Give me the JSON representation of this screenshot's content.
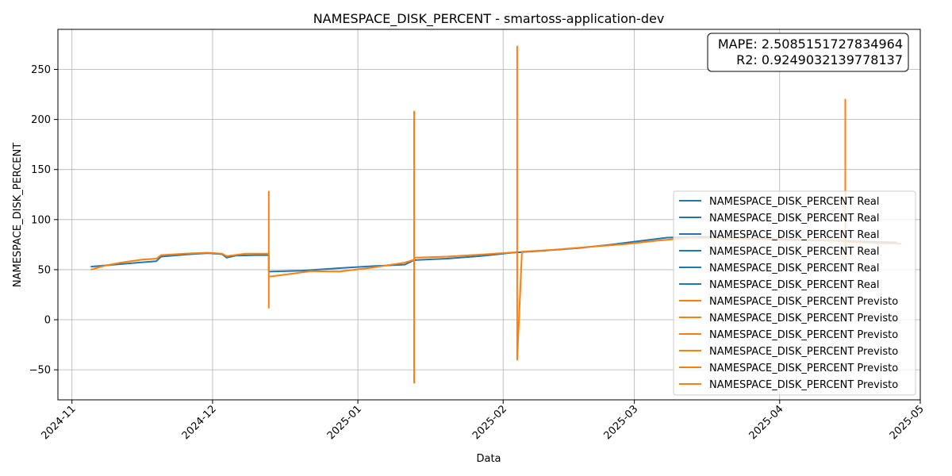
{
  "chart_data": {
    "type": "line",
    "title": "NAMESPACE_DISK_PERCENT - smartoss-application-dev",
    "xlabel": "Data",
    "ylabel": "NAMESPACE_DISK_PERCENT",
    "xlim": [
      "2024-10-29",
      "2025-05-01"
    ],
    "ylim": [
      -80,
      290
    ],
    "grid": true,
    "legend_position": "lower-right",
    "x_ticks": [
      "2024-11",
      "2024-12",
      "2025-01",
      "2025-02",
      "2025-03",
      "2025-04",
      "2025-05"
    ],
    "y_ticks": [
      -50,
      0,
      50,
      100,
      150,
      200,
      250
    ],
    "colors": {
      "real": "#1f77b4",
      "previsto": "#ff7f0e"
    },
    "annotation": {
      "mape": "MAPE: 2.5085151727834964",
      "r2": "R2: 0.9249032139778137"
    },
    "legend": [
      "NAMESPACE_DISK_PERCENT Real",
      "NAMESPACE_DISK_PERCENT Real",
      "NAMESPACE_DISK_PERCENT Real",
      "NAMESPACE_DISK_PERCENT Real",
      "NAMESPACE_DISK_PERCENT Real",
      "NAMESPACE_DISK_PERCENT Real",
      "NAMESPACE_DISK_PERCENT Previsto",
      "NAMESPACE_DISK_PERCENT Previsto",
      "NAMESPACE_DISK_PERCENT Previsto",
      "NAMESPACE_DISK_PERCENT Previsto",
      "NAMESPACE_DISK_PERCENT Previsto",
      "NAMESPACE_DISK_PERCENT Previsto"
    ],
    "series": [
      {
        "name": "NAMESPACE_DISK_PERCENT Real",
        "kind": "real",
        "points": [
          [
            "2024-11-05",
            53
          ],
          [
            "2024-11-10",
            55
          ],
          [
            "2024-11-15",
            57
          ],
          [
            "2024-11-19",
            58.5
          ],
          [
            "2024-11-20",
            63
          ],
          [
            "2024-11-25",
            65
          ],
          [
            "2024-11-30",
            66.5
          ],
          [
            "2024-12-03",
            65.5
          ],
          [
            "2024-12-04",
            62
          ],
          [
            "2024-12-06",
            64
          ],
          [
            "2024-12-10",
            64.5
          ],
          [
            "2024-12-13",
            64.5
          ],
          [
            "2024-12-13",
            48
          ],
          [
            "2024-12-20",
            49
          ],
          [
            "2024-12-28",
            51.5
          ],
          [
            "2025-01-04",
            53.5
          ],
          [
            "2025-01-11",
            55
          ],
          [
            "2025-01-13",
            59.5
          ],
          [
            "2025-01-20",
            61
          ],
          [
            "2025-01-27",
            63.5
          ],
          [
            "2025-02-03",
            67
          ],
          [
            "2025-02-10",
            69
          ],
          [
            "2025-02-17",
            71.5
          ],
          [
            "2025-02-24",
            75
          ],
          [
            "2025-03-01",
            78
          ],
          [
            "2025-03-08",
            82
          ],
          [
            "2025-03-15",
            83
          ],
          [
            "2025-03-22",
            82
          ],
          [
            "2025-03-29",
            81
          ],
          [
            "2025-04-05",
            80
          ],
          [
            "2025-04-12",
            79
          ],
          [
            "2025-04-19",
            78
          ],
          [
            "2025-04-26",
            77
          ]
        ]
      },
      {
        "name": "NAMESPACE_DISK_PERCENT Previsto",
        "kind": "previsto",
        "points": [
          [
            "2024-11-05",
            50
          ],
          [
            "2024-11-08",
            54
          ],
          [
            "2024-11-12",
            57.5
          ],
          [
            "2024-11-16",
            60
          ],
          [
            "2024-11-19",
            61
          ],
          [
            "2024-11-20",
            64.5
          ],
          [
            "2024-11-25",
            66
          ],
          [
            "2024-11-30",
            67
          ],
          [
            "2024-12-03",
            66
          ],
          [
            "2024-12-04",
            63.5
          ],
          [
            "2024-12-08",
            66
          ],
          [
            "2024-12-13",
            66
          ],
          [
            "2024-12-13",
            128
          ],
          [
            "2024-12-13",
            12
          ],
          [
            "2024-12-13",
            43
          ],
          [
            "2024-12-18",
            46
          ],
          [
            "2024-12-22",
            48.5
          ],
          [
            "2024-12-28",
            48
          ],
          [
            "2025-01-04",
            52
          ],
          [
            "2025-01-11",
            57
          ],
          [
            "2025-01-13",
            60
          ],
          [
            "2025-01-13",
            208
          ],
          [
            "2025-01-13",
            -63
          ],
          [
            "2025-01-13",
            62
          ],
          [
            "2025-01-20",
            63
          ],
          [
            "2025-01-27",
            65
          ],
          [
            "2025-02-04",
            67.5
          ],
          [
            "2025-02-04",
            273
          ],
          [
            "2025-02-04",
            -40
          ],
          [
            "2025-02-05",
            68
          ],
          [
            "2025-02-12",
            70
          ],
          [
            "2025-02-20",
            73
          ],
          [
            "2025-02-27",
            75.5
          ],
          [
            "2025-03-06",
            79
          ],
          [
            "2025-03-13",
            82
          ],
          [
            "2025-03-20",
            81.5
          ],
          [
            "2025-03-27",
            80.5
          ],
          [
            "2025-04-03",
            79.5
          ],
          [
            "2025-04-10",
            79
          ],
          [
            "2025-04-15",
            78.5
          ],
          [
            "2025-04-15",
            220
          ],
          [
            "2025-04-15",
            60
          ],
          [
            "2025-04-15",
            78
          ],
          [
            "2025-04-22",
            76.5
          ],
          [
            "2025-04-27",
            76
          ]
        ]
      }
    ]
  }
}
